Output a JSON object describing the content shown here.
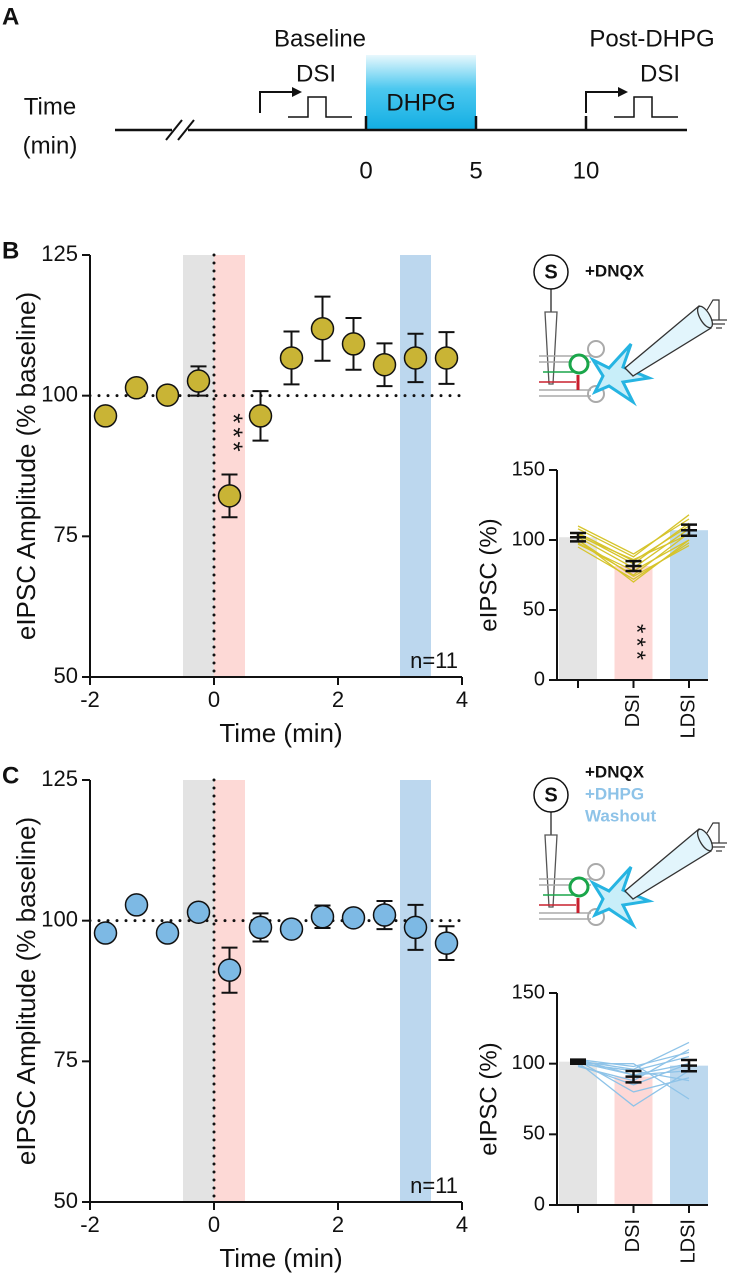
{
  "panel_a": {
    "label": "A",
    "axis_label": [
      "Time",
      "(min)"
    ],
    "ticks": [
      0,
      5,
      10
    ],
    "treatment": {
      "label": "DHPG",
      "span": [
        0,
        5
      ]
    },
    "baseline": {
      "title": "Baseline",
      "protocol": "DSI"
    },
    "post": {
      "title": "Post-DHPG",
      "protocol": "DSI",
      "start": 10
    }
  },
  "chart_data": [
    {
      "type": "scatter",
      "panel": "B",
      "x": [
        -1.75,
        -1.25,
        -0.75,
        -0.25,
        0.25,
        0.75,
        1.25,
        1.75,
        2.25,
        2.75,
        3.25,
        3.75
      ],
      "values": [
        96.4,
        101.4,
        100.1,
        102.6,
        82.2,
        96.4,
        106.7,
        111.9,
        109.2,
        105.5,
        106.7,
        106.7
      ],
      "errors": [
        1,
        1,
        1,
        2.6,
        3.8,
        4.4,
        4.7,
        5.7,
        4.6,
        3.8,
        4.3,
        4.6
      ],
      "color": "#c9b435",
      "xlim": [
        -2,
        4
      ],
      "ylim": [
        50,
        125
      ],
      "xticks": [
        -2,
        0,
        2,
        4
      ],
      "yticks": [
        50,
        75,
        100,
        125
      ],
      "xlabel": "Time (min)",
      "ylabel": "eIPSC Amplitude (% baseline)",
      "bands": [
        {
          "xlim": [
            -0.5,
            0
          ],
          "color": "#e3e3e3"
        },
        {
          "xlim": [
            0,
            0.5
          ],
          "color": "#fdd9d6"
        },
        {
          "xlim": [
            3,
            3.5
          ],
          "color": "#bcd7ee"
        }
      ],
      "hlines": [
        100
      ],
      "vlines": [
        0
      ],
      "significance": "***",
      "n_label": "n=11",
      "schematic": {
        "stimulus": "S",
        "conditions": [
          "+DNQX"
        ]
      }
    },
    {
      "type": "bar",
      "categories": [
        null,
        "DSI",
        "LDSI"
      ],
      "values": [
        102,
        81.4,
        107
      ],
      "errors": [
        3,
        3.5,
        4
      ],
      "colors": [
        "#e4e4e4",
        "#fdd8d6",
        "#bcd8ee"
      ],
      "ylim": [
        0,
        150
      ],
      "yticks": [
        0,
        50,
        100,
        150
      ],
      "ylabel": "eIPSC (%)",
      "line_color": "#d6c42c",
      "lines": [
        [
          98,
          75,
          105
        ],
        [
          105,
          85,
          110
        ],
        [
          100,
          70,
          100
        ],
        [
          110,
          90,
          115
        ],
        [
          95,
          72,
          98
        ],
        [
          102,
          80,
          108
        ],
        [
          108,
          88,
          118
        ],
        [
          97,
          78,
          100
        ],
        [
          104,
          83,
          112
        ],
        [
          100,
          74,
          96
        ],
        [
          103,
          86,
          104
        ]
      ],
      "significance": "***"
    },
    {
      "type": "scatter",
      "panel": "C",
      "x": [
        -1.75,
        -1.25,
        -0.75,
        -0.25,
        0.25,
        0.75,
        1.25,
        1.75,
        2.25,
        2.75,
        3.25,
        3.75
      ],
      "values": [
        97.8,
        102.8,
        97.8,
        101.5,
        91.2,
        98.8,
        98.5,
        100.7,
        100.5,
        101,
        98.8,
        96
      ],
      "errors": [
        1,
        1,
        1,
        1,
        4,
        2.5,
        1,
        2,
        1,
        2.5,
        4,
        3
      ],
      "color": "#7db9e4",
      "xlim": [
        -2,
        4
      ],
      "ylim": [
        50,
        125
      ],
      "xticks": [
        -2,
        0,
        2,
        4
      ],
      "yticks": [
        50,
        75,
        100,
        125
      ],
      "xlabel": "Time (min)",
      "ylabel": "eIPSC Amplitude (% baseline)",
      "bands": [
        {
          "xlim": [
            -0.5,
            0
          ],
          "color": "#e3e3e3"
        },
        {
          "xlim": [
            0,
            0.5
          ],
          "color": "#fdd9d6"
        },
        {
          "xlim": [
            3,
            3.5
          ],
          "color": "#bcd7ee"
        }
      ],
      "hlines": [
        100
      ],
      "vlines": [
        0
      ],
      "n_label": "n=11",
      "schematic": {
        "stimulus": "S",
        "conditions": [
          "+DNQX",
          "+DHPG",
          "Washout"
        ]
      }
    },
    {
      "type": "bar",
      "categories": [
        null,
        "DSI",
        "LDSI"
      ],
      "values": [
        101.4,
        90.8,
        98.6
      ],
      "errors": [
        1.5,
        4,
        4
      ],
      "colors": [
        "#e4e4e4",
        "#fdd8d6",
        "#bcd8ee"
      ],
      "ylim": [
        0,
        150
      ],
      "yticks": [
        0,
        50,
        100,
        150
      ],
      "ylabel": "eIPSC (%)",
      "line_color": "#8ec3e8",
      "lines": [
        [
          100,
          95,
          105
        ],
        [
          102,
          80,
          90
        ],
        [
          98,
          88,
          110
        ],
        [
          103,
          92,
          100
        ],
        [
          101,
          70,
          95
        ],
        [
          100,
          100,
          75
        ],
        [
          102,
          96,
          115
        ],
        [
          99,
          85,
          100
        ],
        [
          101,
          92,
          95
        ],
        [
          103,
          98,
          108
        ],
        [
          100,
          95,
          88
        ]
      ]
    }
  ]
}
